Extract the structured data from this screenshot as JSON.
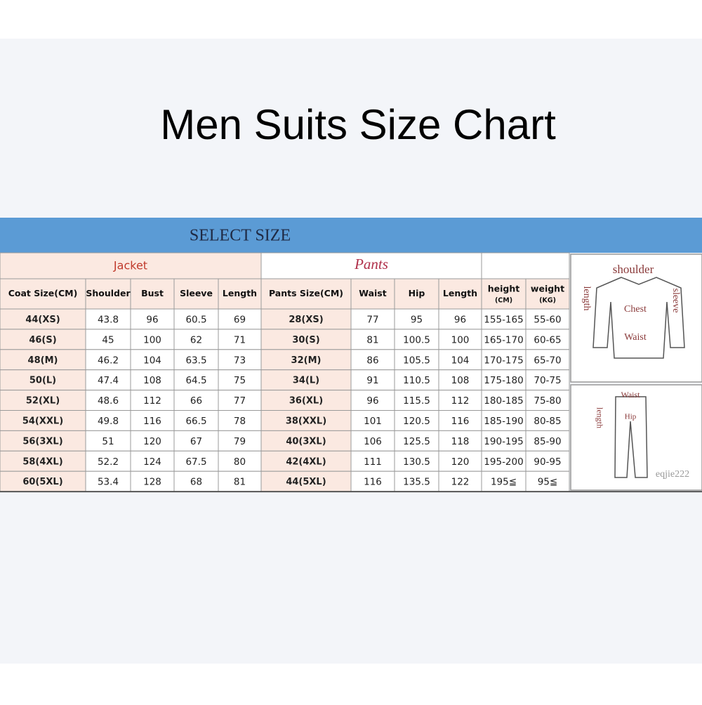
{
  "header": {
    "title": "Men Suits Size Chart"
  },
  "table": {
    "banner": "SELECT SIZE",
    "groups": [
      "Jacket",
      "Pants"
    ],
    "columns": [
      "Coat Size(CM)",
      "Shoulder",
      "Bust",
      "Sleeve",
      "Length",
      "Pants Size(CM)",
      "Waist",
      "Hip",
      "Length"
    ],
    "extra_columns": [
      {
        "name": "height",
        "unit": "(CM)"
      },
      {
        "name": "weight",
        "unit": "(KG)"
      }
    ],
    "rows": [
      [
        "44(XS)",
        "43.8",
        "96",
        "60.5",
        "69",
        "28(XS)",
        "77",
        "95",
        "96",
        "155-165",
        "55-60"
      ],
      [
        "46(S)",
        "45",
        "100",
        "62",
        "71",
        "30(S)",
        "81",
        "100.5",
        "100",
        "165-170",
        "60-65"
      ],
      [
        "48(M)",
        "46.2",
        "104",
        "63.5",
        "73",
        "32(M)",
        "86",
        "105.5",
        "104",
        "170-175",
        "65-70"
      ],
      [
        "50(L)",
        "47.4",
        "108",
        "64.5",
        "75",
        "34(L)",
        "91",
        "110.5",
        "108",
        "175-180",
        "70-75"
      ],
      [
        "52(XL)",
        "48.6",
        "112",
        "66",
        "77",
        "36(XL)",
        "96",
        "115.5",
        "112",
        "180-185",
        "75-80"
      ],
      [
        "54(XXL)",
        "49.8",
        "116",
        "66.5",
        "78",
        "38(XXL)",
        "101",
        "120.5",
        "116",
        "185-190",
        "80-85"
      ],
      [
        "56(3XL)",
        "51",
        "120",
        "67",
        "79",
        "40(3XL)",
        "106",
        "125.5",
        "118",
        "190-195",
        "85-90"
      ],
      [
        "58(4XL)",
        "52.2",
        "124",
        "67.5",
        "80",
        "42(4XL)",
        "111",
        "130.5",
        "120",
        "195-200",
        "90-95"
      ],
      [
        "60(5XL)",
        "53.4",
        "128",
        "68",
        "81",
        "44(5XL)",
        "116",
        "135.5",
        "122",
        "195≦",
        "95≦"
      ]
    ]
  },
  "diagram": {
    "jacket_labels": [
      "shoulder",
      "length",
      "sleeve",
      "Chest",
      "Waist"
    ],
    "pants_labels": [
      "Waist",
      "Hip",
      "length"
    ],
    "watermark": "eqjie222"
  }
}
